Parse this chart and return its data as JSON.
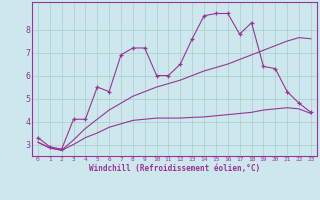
{
  "x_main": [
    0,
    1,
    2,
    3,
    4,
    5,
    6,
    7,
    8,
    9,
    10,
    11,
    12,
    13,
    14,
    15,
    16,
    17,
    18,
    19,
    20,
    21,
    22,
    23
  ],
  "y_jagged": [
    3.3,
    2.9,
    2.8,
    4.1,
    4.1,
    5.5,
    5.3,
    6.9,
    7.2,
    7.2,
    6.0,
    6.0,
    6.5,
    7.6,
    8.6,
    8.7,
    8.7,
    7.8,
    8.3,
    6.4,
    6.3,
    5.3,
    4.8,
    4.4
  ],
  "y_upper_line": [
    3.1,
    2.85,
    2.75,
    3.2,
    3.7,
    4.1,
    4.5,
    4.8,
    5.1,
    5.3,
    5.5,
    5.65,
    5.8,
    6.0,
    6.2,
    6.35,
    6.5,
    6.7,
    6.9,
    7.1,
    7.3,
    7.5,
    7.65,
    7.6
  ],
  "y_lower_line": [
    3.1,
    2.85,
    2.75,
    3.0,
    3.3,
    3.5,
    3.75,
    3.9,
    4.05,
    4.1,
    4.15,
    4.15,
    4.15,
    4.18,
    4.2,
    4.25,
    4.3,
    4.35,
    4.4,
    4.5,
    4.55,
    4.6,
    4.55,
    4.35
  ],
  "color": "#993399",
  "bg_color": "#cce8ec",
  "grid_color": "#aacccc",
  "xlabel": "Windchill (Refroidissement éolien,°C)",
  "ylim": [
    2.5,
    9.2
  ],
  "xlim": [
    -0.5,
    23.5
  ],
  "yticks": [
    3,
    4,
    5,
    6,
    7,
    8
  ],
  "xticks": [
    0,
    1,
    2,
    3,
    4,
    5,
    6,
    7,
    8,
    9,
    10,
    11,
    12,
    13,
    14,
    15,
    16,
    17,
    18,
    19,
    20,
    21,
    22,
    23
  ]
}
